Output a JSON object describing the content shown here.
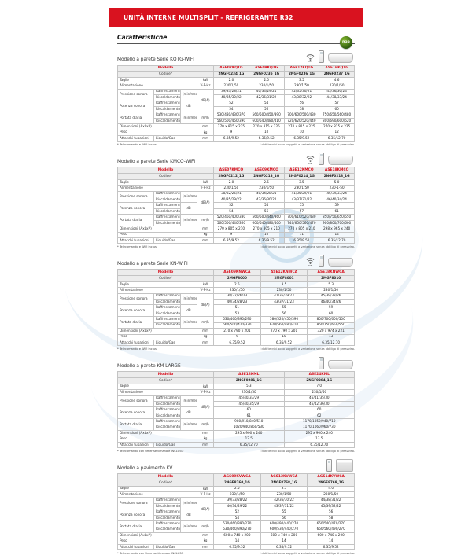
{
  "page": {
    "header_title": "UNITÀ INTERNE MULTISPLIT - REFRIGERANTE R32",
    "section_title": "Caratteristiche",
    "r32_badge": "R32",
    "watermark_letter": "R",
    "footnote_right": "I dati tecnici sono soggetti a variazione senza obbligo di preavviso.",
    "icons": {
      "wifi_label": "WiFi"
    },
    "colors": {
      "brand_red": "#d9121f",
      "header_gray": "#ececec",
      "badge_green": "#2f5d10",
      "watermark_blue": "#96bcdb"
    }
  },
  "table_template": {
    "header_model_label": "Modello",
    "header_code_label": "Codice*",
    "taglie": "Taglie",
    "taglie_unit": "kW",
    "alimentazione": "Alimentazione",
    "alimentazione_unit": "V-F-Hz",
    "pressione": "Pressione sonora",
    "potenza": "Potenza sonora",
    "portata": "Portata d'aria",
    "raffrescamento": "Raffrescamento",
    "riscaldamento": "Riscaldamento",
    "minmedmax": "(min/med/max)",
    "db_unit": "dB(A)",
    "db2_unit": "dB",
    "portata_unit": "m³/h",
    "dimensioni": "Dimensioni (AxLxP)",
    "dim_unit": "mm",
    "peso": "Peso",
    "peso_unit": "kg",
    "attacchi": "Attacchi tubazioni",
    "liquido_gas": "Liquido/Gas",
    "attacchi_unit": "mm"
  },
  "sections": [
    {
      "title": "Modello a parete Serie KQTG-WIFI",
      "icons": [
        "wifi",
        "remote",
        "wall"
      ],
      "models": [
        "ASE07KQTG",
        "ASE09KQTG",
        "ASE12KQTG",
        "ASE16KQTG"
      ],
      "codes": [
        "2NGF0234_1G",
        "2NGF0235_1G",
        "2NGF0236_1G",
        "2NGF0237_1G"
      ],
      "taglie": [
        "2.0",
        "2.5",
        "3.5",
        "4.6"
      ],
      "alimentazione": [
        "230/1/50",
        "230/1/50",
        "230/1/50",
        "230/1/50"
      ],
      "pressione_raff": [
        "39/33/28/21",
        "40/34/29/21",
        "42/35/30/21",
        "43/36/30/24"
      ],
      "pressione_risc": [
        "40/35/30/22",
        "42/36/31/22",
        "43/38/32/22",
        "44/38/33/24"
      ],
      "potenza_raff": [
        "52",
        "54",
        "56",
        "57"
      ],
      "potenza_risc": [
        "54",
        "56",
        "58",
        "60"
      ],
      "portata_raff": [
        "530/480/430/370",
        "560/500/450/390",
        "700/600/500/430",
        "750/650/560/480"
      ],
      "portata_risc": [
        "560/500/450/390",
        "600/540/480/410",
        "720/620/520/440",
        "800/690/600/520"
      ],
      "dimensioni": [
        "270 x 815 x 225",
        "270 x 815 x 225",
        "270 x 815 x 225",
        "270 x 815 x 225"
      ],
      "peso": [
        "9",
        "10",
        "10",
        "12"
      ],
      "attacchi": [
        "6.35/9.52",
        "6.35/9.52",
        "6.35/9.52",
        "6.35/12.70"
      ],
      "footnote_left": "* Telecomando e WiFi inclusi"
    },
    {
      "title": "Modello a parete Serie KMCO-WIFI",
      "icons": [
        "wifi",
        "remote",
        "wall"
      ],
      "models": [
        "ASE07KMCO",
        "ASE09KMCO",
        "ASE12KMCO",
        "ASE18KMCO"
      ],
      "codes": [
        "2NGF0212_1G",
        "2NGF0213_1G",
        "2NGF0214_1G",
        "2NGF0218_1G"
      ],
      "taglie": [
        "2.0",
        "2.5",
        "3.5",
        "5.0"
      ],
      "alimentazione": [
        "230/1/50",
        "230/1/50",
        "230/1/50",
        "230-1-50"
      ],
      "pressione_raff": [
        "38/32/26/21",
        "40/34/28/21",
        "41/35/29/21",
        "45/39/33/24"
      ],
      "pressione_risc": [
        "40/35/29/22",
        "42/36/30/22",
        "43/37/31/22",
        "46/40/34/24"
      ],
      "potenza_raff": [
        "52",
        "54",
        "55",
        "59"
      ],
      "potenza_risc": [
        "54",
        "56",
        "57",
        "61"
      ],
      "portata_raff": [
        "520/460/400/330",
        "560/500/440/360",
        "700/610/520/430",
        "850/750/650/550"
      ],
      "portata_risc": [
        "560/500/440/360",
        "600/540/480/400",
        "740/650/560/470",
        "900/800/700/600"
      ],
      "dimensioni": [
        "270 x 805 x 210",
        "270 x 805 x 210",
        "270 x 805 x 210",
        "298 x 965 x 240"
      ],
      "peso": [
        "9",
        "10",
        "11",
        "14"
      ],
      "attacchi": [
        "6.35/9.52",
        "6.35/9.52",
        "6.35/9.52",
        "6.35/12.70"
      ],
      "footnote_left": "* Telecomando e WiFi inclusi"
    },
    {
      "title": "Modello a parete Serie KN-WIFI",
      "icons": [
        "wifi",
        "remote",
        "wall"
      ],
      "models": [
        "ASE09KNWCA",
        "ASE12KNWCA",
        "ASE18KNWCA"
      ],
      "codes": [
        "2MGF8000",
        "2MGF8001",
        "2MGF8010"
      ],
      "taglie": [
        "2.5",
        "3.5",
        "5.3"
      ],
      "alimentazione": [
        "230/1/50",
        "230/1/50",
        "230/1/50"
      ],
      "pressione_raff": [
        "38/32/26/23",
        "41/35/29/23",
        "45/39/33/26"
      ],
      "pressione_risc": [
        "40/34/28/23",
        "43/37/31/23",
        "46/40/34/26"
      ],
      "potenza_raff": [
        "51",
        "55",
        "59"
      ],
      "potenza_risc": [
        "53",
        "56",
        "60"
      ],
      "portata_raff": [
        "530/460/390/290",
        "580/520/450/390",
        "800/700/600/500"
      ],
      "portata_risc": [
        "560/500/420/330",
        "620/560/480/410",
        "850/750/650/550"
      ],
      "dimensioni": [
        "270 x 790 x 201",
        "270 x 790 x 201",
        "320 x 974 x 221"
      ],
      "peso": [
        "9",
        "10",
        "13"
      ],
      "attacchi": [
        "6.35/9.52",
        "6.35/9.52",
        "6.35/12.70"
      ],
      "footnote_left": "* Telecomando e WiFi inclusi"
    },
    {
      "title": "Modello a parete KM LARGE",
      "icons": [
        "remote",
        "wall"
      ],
      "models": [
        "ASE18KML",
        "ASE24KML"
      ],
      "codes": [
        "2NGF0281_1G",
        "2NGF0284_1G"
      ],
      "taglie": [
        "5.3",
        "7.0"
      ],
      "alimentazione": [
        "230/1/50",
        "230/1/50"
      ],
      "pressione_raff": [
        "45/40/33/29",
        "46/41/35/30"
      ],
      "pressione_risc": [
        "45/40/35/29",
        "46/42/36/30"
      ],
      "potenza_raff": [
        "60",
        "60"
      ],
      "potenza_risc": [
        "61",
        "62"
      ],
      "portata_raff": [
        "980/910/840/510",
        "1170/1050/940/710"
      ],
      "portata_risc": [
        "1020/940/860/530",
        "1170/1060/960/730"
      ],
      "dimensioni": [
        "295 x 900 x 240",
        "295 x 900 x 240"
      ],
      "peso": [
        "12.5",
        "13.5"
      ],
      "attacchi": [
        "6.35/12.70",
        "6.35/12.70"
      ],
      "footnote_left": "* Telecomando con timer settimanale INCLUSO"
    },
    {
      "title": "Modello a pavimento KV",
      "icons": [
        "remote",
        "console"
      ],
      "models": [
        "AGS09KVWCA",
        "AGS12KVWCA",
        "AGS14KVWCA"
      ],
      "codes": [
        "2NGF8760_1G",
        "2NGF8768_1G",
        "2NGF8769_1G"
      ],
      "taglie": [
        "2.5",
        "3.5",
        "4.0"
      ],
      "alimentazione": [
        "230/1/50",
        "230/1/50",
        "230/1/50"
      ],
      "pressione_raff": [
        "39/33/28/22",
        "42/36/30/22",
        "44/38/31/22"
      ],
      "pressione_risc": [
        "40/34/29/22",
        "43/37/31/22",
        "45/39/32/22"
      ],
      "potenza_raff": [
        "52",
        "55",
        "56"
      ],
      "potenza_risc": [
        "54",
        "56",
        "58"
      ],
      "portata_raff": [
        "530/460/390/270",
        "600/490/440/270",
        "650/540/470/270"
      ],
      "portata_risc": [
        "530/460/390/270",
        "600/530/440/270",
        "650/560/490/270"
      ],
      "dimensioni": [
        "600 x 740 x 200",
        "600 x 740 x 200",
        "600 x 740 x 200"
      ],
      "peso": [
        "14",
        "14",
        "14"
      ],
      "attacchi": [
        "6.35/9.52",
        "6.35/9.52",
        "6.35/9.52"
      ],
      "footnote_left": "* Telecomando con timer settimanale INCLUSO"
    }
  ]
}
